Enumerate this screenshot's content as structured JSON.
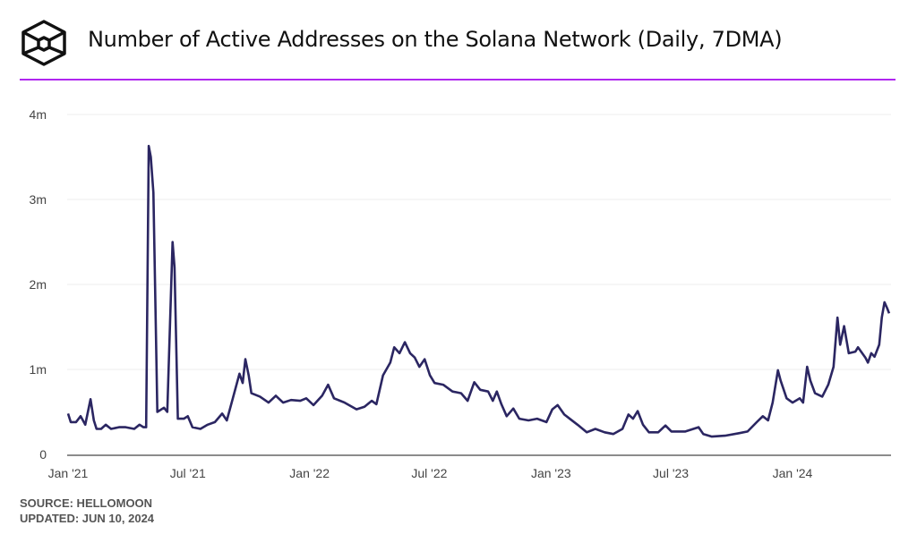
{
  "header": {
    "title": "Number of Active Addresses on the Solana Network (Daily, 7DMA)",
    "logo": "the-block-cube-logo"
  },
  "footer": {
    "source": "SOURCE: HELLOMOON",
    "updated": "UPDATED: JUN 10, 2024"
  },
  "colors": {
    "line": "#2b2662",
    "accent_rule": "#b026f0",
    "grid": "#ececec"
  },
  "chart_data": {
    "type": "line",
    "title": "Number of Active Addresses on the Solana Network (Daily, 7DMA)",
    "xlabel": "",
    "ylabel": "",
    "ylim": [
      0,
      4000000
    ],
    "yticks": [
      0,
      1000000,
      2000000,
      3000000,
      4000000
    ],
    "ytick_labels": [
      "0",
      "1m",
      "2m",
      "3m",
      "4m"
    ],
    "xtick_dates": [
      "2021-01-01",
      "2021-07-01",
      "2022-01-01",
      "2022-07-01",
      "2023-01-01",
      "2023-07-01",
      "2024-01-01"
    ],
    "xtick_labels": [
      "Jan '21",
      "Jul '21",
      "Jan '22",
      "Jul '22",
      "Jan '23",
      "Jul '23",
      "Jan '24"
    ],
    "xlim": [
      "2021-01-01",
      "2024-06-01"
    ],
    "grid": true,
    "series": [
      {
        "x": [
          "2021-01-01",
          "2021-01-05",
          "2021-01-13",
          "2021-01-20",
          "2021-01-27",
          "2021-02-04",
          "2021-02-09",
          "2021-02-13",
          "2021-02-20",
          "2021-02-27",
          "2021-03-07",
          "2021-03-19",
          "2021-03-29",
          "2021-04-11",
          "2021-04-19",
          "2021-04-25",
          "2021-04-29",
          "2021-05-03",
          "2021-05-06",
          "2021-05-10",
          "2021-05-16",
          "2021-05-26",
          "2021-05-31",
          "2021-06-08",
          "2021-06-11",
          "2021-06-16",
          "2021-06-25",
          "2021-07-01",
          "2021-07-08",
          "2021-07-20",
          "2021-07-31",
          "2021-08-11",
          "2021-08-22",
          "2021-08-29",
          "2021-09-07",
          "2021-09-17",
          "2021-09-22",
          "2021-09-26",
          "2021-10-01",
          "2021-10-05",
          "2021-10-18",
          "2021-10-31",
          "2021-11-11",
          "2021-11-22",
          "2021-12-04",
          "2021-12-18",
          "2021-12-27",
          "2022-01-07",
          "2022-01-20",
          "2022-01-29",
          "2022-02-07",
          "2022-02-23",
          "2022-03-13",
          "2022-03-25",
          "2022-04-05",
          "2022-04-12",
          "2022-04-22",
          "2022-05-03",
          "2022-05-09",
          "2022-05-17",
          "2022-05-25",
          "2022-06-02",
          "2022-06-09",
          "2022-06-16",
          "2022-06-24",
          "2022-07-02",
          "2022-07-09",
          "2022-07-22",
          "2022-08-05",
          "2022-08-18",
          "2022-08-28",
          "2022-09-07",
          "2022-09-16",
          "2022-09-28",
          "2022-10-05",
          "2022-10-11",
          "2022-10-18",
          "2022-10-26",
          "2022-11-05",
          "2022-11-14",
          "2022-11-28",
          "2022-12-11",
          "2022-12-25",
          "2023-01-03",
          "2023-01-11",
          "2023-01-21",
          "2023-02-10",
          "2023-02-24",
          "2023-03-09",
          "2023-03-23",
          "2023-04-05",
          "2023-04-19",
          "2023-04-28",
          "2023-05-05",
          "2023-05-12",
          "2023-05-20",
          "2023-05-29",
          "2023-06-12",
          "2023-06-23",
          "2023-07-02",
          "2023-07-23",
          "2023-08-12",
          "2023-08-19",
          "2023-09-01",
          "2023-09-21",
          "2023-10-12",
          "2023-10-25",
          "2023-11-08",
          "2023-11-17",
          "2023-11-25",
          "2023-12-02",
          "2023-12-10",
          "2023-12-14",
          "2023-12-23",
          "2024-01-01",
          "2024-01-12",
          "2024-01-17",
          "2024-01-23",
          "2024-01-28",
          "2024-02-04",
          "2024-02-15",
          "2024-02-24",
          "2024-03-03",
          "2024-03-09",
          "2024-03-13",
          "2024-03-19",
          "2024-03-26",
          "2024-04-05",
          "2024-04-09",
          "2024-04-20",
          "2024-04-24",
          "2024-04-29",
          "2024-05-04",
          "2024-05-11",
          "2024-05-15",
          "2024-05-19",
          "2024-05-23",
          "2024-05-26"
        ],
        "values": [
          480000,
          380000,
          380000,
          450000,
          350000,
          650000,
          400000,
          300000,
          300000,
          350000,
          300000,
          320000,
          320000,
          300000,
          350000,
          320000,
          320000,
          3630000,
          3500000,
          3080000,
          500000,
          550000,
          500000,
          2500000,
          2200000,
          420000,
          420000,
          450000,
          320000,
          300000,
          350000,
          380000,
          480000,
          400000,
          660000,
          950000,
          840000,
          1120000,
          930000,
          720000,
          680000,
          610000,
          690000,
          610000,
          640000,
          630000,
          660000,
          580000,
          690000,
          820000,
          660000,
          610000,
          530000,
          560000,
          630000,
          590000,
          930000,
          1080000,
          1260000,
          1190000,
          1320000,
          1190000,
          1140000,
          1030000,
          1120000,
          930000,
          840000,
          820000,
          740000,
          720000,
          630000,
          850000,
          760000,
          740000,
          630000,
          740000,
          590000,
          450000,
          540000,
          420000,
          400000,
          420000,
          380000,
          530000,
          580000,
          470000,
          350000,
          260000,
          300000,
          260000,
          240000,
          300000,
          470000,
          420000,
          510000,
          350000,
          260000,
          260000,
          340000,
          270000,
          270000,
          320000,
          240000,
          210000,
          220000,
          250000,
          270000,
          380000,
          450000,
          400000,
          610000,
          990000,
          870000,
          660000,
          610000,
          660000,
          610000,
          1030000,
          870000,
          720000,
          680000,
          820000,
          1030000,
          1610000,
          1290000,
          1510000,
          1190000,
          1210000,
          1260000,
          1140000,
          1080000,
          1190000,
          1150000,
          1290000,
          1610000,
          1790000,
          1720000,
          1660000
        ]
      }
    ]
  }
}
